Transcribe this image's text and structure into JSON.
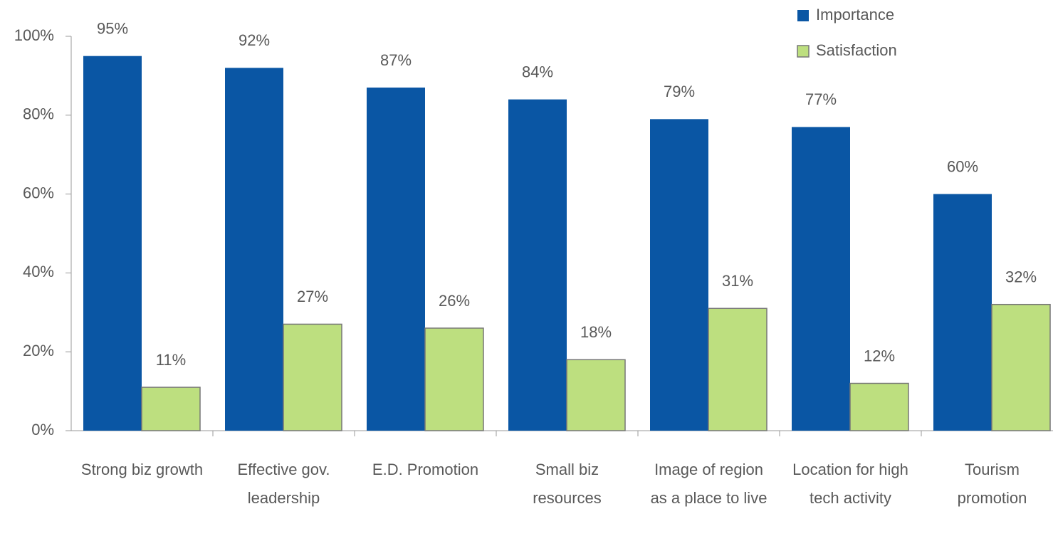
{
  "chart_data": {
    "type": "bar",
    "categories": [
      "Strong biz growth",
      "Effective gov. leadership",
      "E.D. Promotion",
      "Small biz resources",
      "Image of region as a place to live",
      "Location for high tech activity",
      "Tourism promotion"
    ],
    "series": [
      {
        "name": "Importance",
        "color": "#0a56a4",
        "values": [
          95,
          92,
          87,
          84,
          79,
          77,
          60
        ],
        "value_labels": [
          "95%",
          "92%",
          "87%",
          "84%",
          "79%",
          "77%",
          "60%"
        ]
      },
      {
        "name": "Satisfaction",
        "color": "#bddf7f",
        "values": [
          11,
          27,
          26,
          18,
          31,
          12,
          32
        ],
        "value_labels": [
          "11%",
          "27%",
          "26%",
          "18%",
          "31%",
          "12%",
          "32%"
        ]
      }
    ],
    "ylim": [
      0,
      100
    ],
    "yticks": [
      {
        "value": 0,
        "label": "0%"
      },
      {
        "value": 20,
        "label": "20%"
      },
      {
        "value": 40,
        "label": "40%"
      },
      {
        "value": 60,
        "label": "60%"
      },
      {
        "value": 80,
        "label": "80%"
      },
      {
        "value": 100,
        "label": "100%"
      }
    ],
    "legend": "top-right"
  }
}
